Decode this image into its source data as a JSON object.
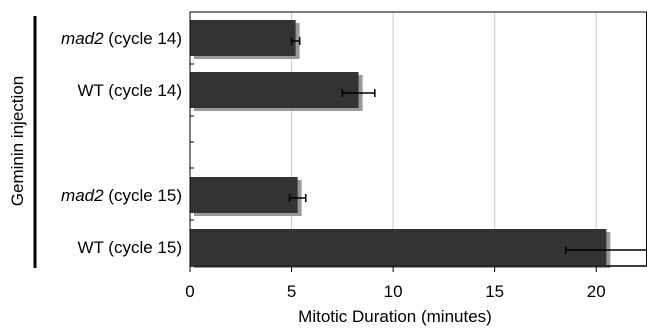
{
  "chart_data": {
    "type": "bar",
    "orientation": "horizontal",
    "ylabel": "Geminin injection",
    "xlabel": "Mitotic Duration (minutes)",
    "xlim": [
      0,
      22.5
    ],
    "x_ticks": [
      0,
      5,
      10,
      15,
      20
    ],
    "grid": "vertical",
    "categories": [
      {
        "label": "mad2 (cycle 14)",
        "italic_prefix": "mad2",
        "rest": " (cycle 14)",
        "value": 5.2,
        "error": 0.2
      },
      {
        "label": "WT (cycle 14)",
        "italic_prefix": "",
        "rest": "WT (cycle 14)",
        "value": 8.3,
        "error": 0.8
      },
      {
        "label": "mad2 (cycle 15)",
        "italic_prefix": "mad2",
        "rest": " (cycle 15)",
        "value": 5.3,
        "error": 0.4
      },
      {
        "label": "WT (cycle 15)",
        "italic_prefix": "",
        "rest": "WT (cycle 15)",
        "value": 20.5,
        "error": 2.0
      }
    ],
    "colors": {
      "bar": "#333333",
      "bar_shadow": "#999999",
      "grid": "#c8c8c8",
      "axis": "#000000"
    }
  }
}
